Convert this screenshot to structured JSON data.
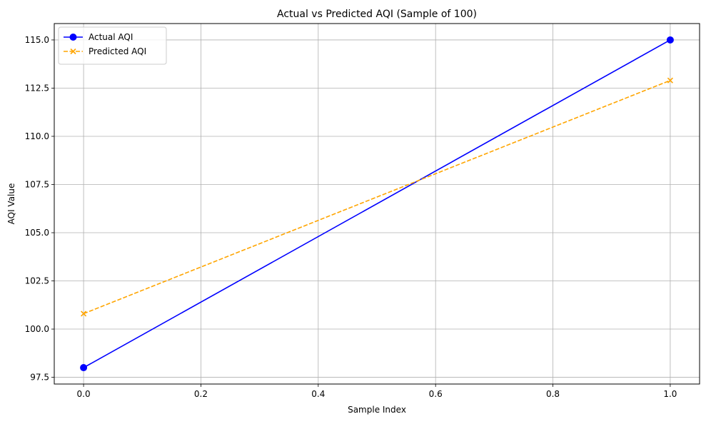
{
  "chart_data": {
    "type": "line",
    "title": "Actual vs Predicted AQI (Sample of 100)",
    "xlabel": "Sample Index",
    "ylabel": "AQI Value",
    "xlim": [
      -0.05,
      1.05
    ],
    "ylim": [
      97.15,
      115.85
    ],
    "xticks": [
      0.0,
      0.2,
      0.4,
      0.6,
      0.8,
      1.0
    ],
    "xtick_labels": [
      "0.0",
      "0.2",
      "0.4",
      "0.6",
      "0.8",
      "1.0"
    ],
    "yticks": [
      97.5,
      100.0,
      102.5,
      105.0,
      107.5,
      110.0,
      112.5,
      115.0
    ],
    "ytick_labels": [
      "97.5",
      "100.0",
      "102.5",
      "105.0",
      "107.5",
      "110.0",
      "112.5",
      "115.0"
    ],
    "grid": true,
    "legend_position": "top-left",
    "series": [
      {
        "name": "Actual AQI",
        "x": [
          0,
          1
        ],
        "y": [
          98.0,
          115.0
        ],
        "color": "#0000ff",
        "line_style": "solid",
        "marker": "circle"
      },
      {
        "name": "Predicted AQI",
        "x": [
          0,
          1
        ],
        "y": [
          100.8,
          112.9
        ],
        "color": "#ffa500",
        "line_style": "dashed",
        "marker": "x"
      }
    ]
  }
}
